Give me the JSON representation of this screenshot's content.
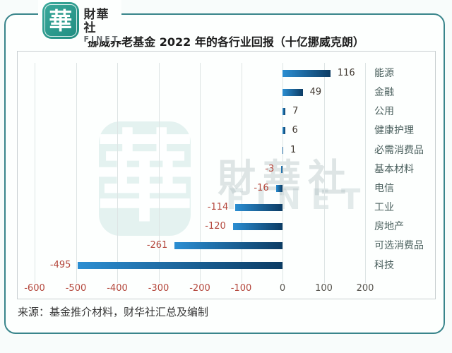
{
  "logo": {
    "square_char": "華",
    "brand": "財華社",
    "brand_sub": "FINET"
  },
  "header": {
    "title": "挪威养老基金 2022 年的各行业回报（十亿挪威克朗）"
  },
  "watermark": {
    "square_char": "華",
    "text": "財華社",
    "sub": "FINET"
  },
  "footer": {
    "source": "来源：基金推介材料，财华社汇总及编制"
  },
  "chart_data": {
    "type": "bar",
    "orientation": "horizontal",
    "title": "挪威养老基金 2022 年的各行业回报（十亿挪威克朗）",
    "unit": "十亿挪威克朗",
    "categories": [
      "能源",
      "金融",
      "公用",
      "健康护理",
      "必需消费品",
      "基本材料",
      "电信",
      "工业",
      "房地产",
      "可选消费品",
      "科技"
    ],
    "values": [
      116,
      49,
      7,
      6,
      1,
      -3,
      -16,
      -114,
      -120,
      -261,
      -495
    ],
    "xlim": [
      -600,
      200
    ],
    "xticks": [
      -600,
      -500,
      -400,
      -300,
      -200,
      -100,
      0,
      100,
      200
    ],
    "grid": true,
    "legend": "none",
    "colors": {
      "bar_gradient_start": "#2b8ed2",
      "bar_gradient_end": "#0c3c64",
      "negative_label": "#b4473c",
      "positive_label": "#423a32",
      "category_label": "#4b605e",
      "frame_border": "#39858b",
      "logo_green": "#2d9d8f"
    }
  }
}
